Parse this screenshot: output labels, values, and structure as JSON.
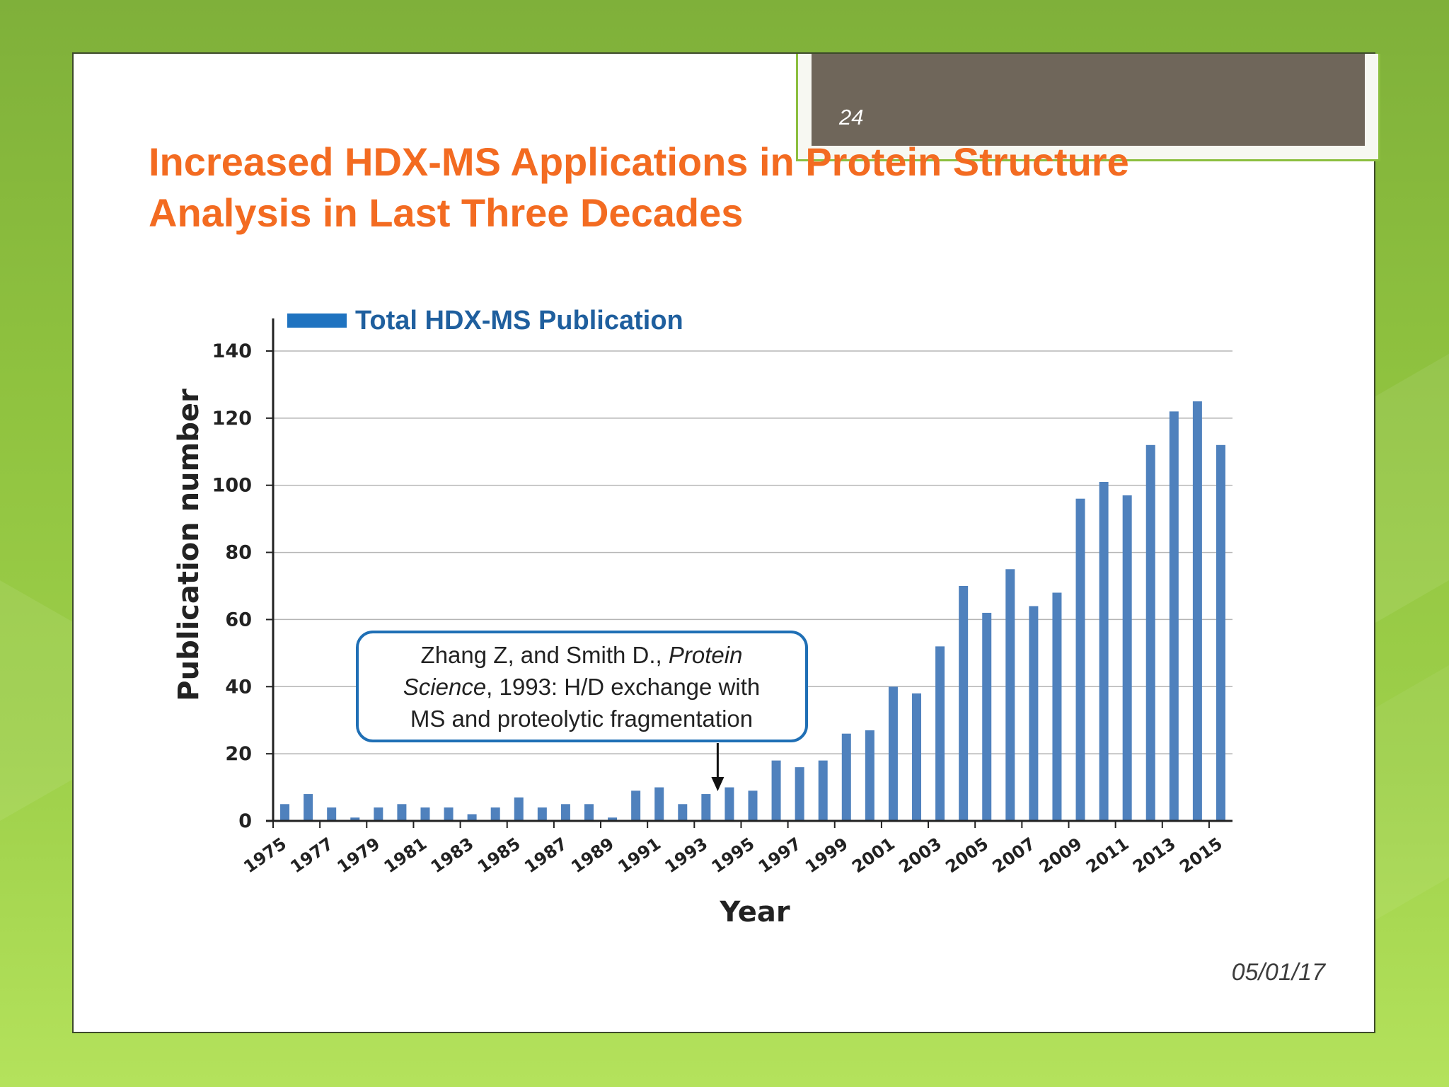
{
  "slide": {
    "number": "24",
    "title": "Increased HDX-MS Applications in Protein Structure Analysis in Last Three Decades",
    "date": "05/01/17"
  },
  "colors": {
    "title": "#f36b21",
    "bar": "#4f81bd",
    "legend_text": "#1f5f9e",
    "callout_border": "#1f6fb5"
  },
  "chart_data": {
    "type": "bar",
    "title": "",
    "xlabel": "Year",
    "ylabel": "Publication number",
    "ylim": [
      0,
      140
    ],
    "yticks": [
      0,
      20,
      40,
      60,
      80,
      100,
      120,
      140
    ],
    "grid": true,
    "legend_position": "top-left",
    "categories": [
      "1975",
      "1976",
      "1977",
      "1978",
      "1979",
      "1980",
      "1981",
      "1982",
      "1983",
      "1984",
      "1985",
      "1986",
      "1987",
      "1988",
      "1989",
      "1990",
      "1991",
      "1992",
      "1993",
      "1994",
      "1995",
      "1996",
      "1997",
      "1998",
      "1999",
      "2000",
      "2001",
      "2002",
      "2003",
      "2004",
      "2005",
      "2006",
      "2007",
      "2008",
      "2009",
      "2010",
      "2011",
      "2012",
      "2013",
      "2014",
      "2015"
    ],
    "xtick_labels": [
      "1975",
      "1977",
      "1979",
      "1981",
      "1983",
      "1985",
      "1987",
      "1989",
      "1991",
      "1993",
      "1995",
      "1997",
      "1999",
      "2001",
      "2003",
      "2005",
      "2007",
      "2009",
      "2011",
      "2013",
      "2015"
    ],
    "series": [
      {
        "name": "Total HDX-MS Publication",
        "values": [
          5,
          8,
          4,
          1,
          4,
          5,
          4,
          4,
          2,
          4,
          7,
          4,
          5,
          5,
          1,
          9,
          10,
          5,
          8,
          10,
          9,
          18,
          16,
          18,
          26,
          27,
          40,
          38,
          52,
          70,
          62,
          75,
          64,
          68,
          96,
          101,
          97,
          112,
          122,
          125,
          112
        ]
      }
    ],
    "annotation": {
      "lines": [
        [
          {
            "text": "Zhang Z, and Smith D., ",
            "italic": false
          },
          {
            "text": "Protein",
            "italic": true
          }
        ],
        [
          {
            "text": "Science",
            "italic": true
          },
          {
            "text": ", 1993: H/D exchange with",
            "italic": false
          }
        ],
        [
          {
            "text": "MS and proteolytic fragmentation",
            "italic": false
          }
        ]
      ],
      "points_to": "1993"
    }
  }
}
